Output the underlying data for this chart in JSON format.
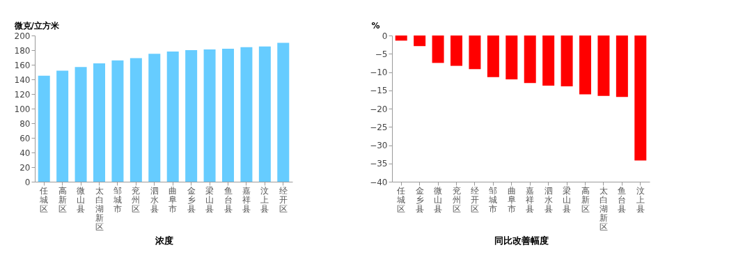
{
  "chart_data": [
    {
      "type": "bar",
      "ylabel": "微克/立方米",
      "xlabel": "浓度",
      "categories": [
        "任城区",
        "高新区",
        "微山县",
        "太白湖新区",
        "邹城市",
        "兖州区",
        "泗水县",
        "曲阜市",
        "金乡县",
        "梁山县",
        "鱼台县",
        "嘉祥县",
        "汶上县",
        "经开区"
      ],
      "series": [
        {
          "color": "#66ccff",
          "values": [
            145,
            152,
            157,
            162,
            166,
            169,
            175,
            178,
            180,
            181,
            182,
            184,
            185,
            190
          ]
        }
      ],
      "ylim": [
        0,
        200
      ],
      "yticks": [
        0,
        20,
        40,
        60,
        80,
        100,
        120,
        140,
        160,
        180,
        200
      ],
      "grid": false,
      "legend": false
    },
    {
      "type": "bar",
      "ylabel": "%",
      "xlabel": "同比改善幅度",
      "categories": [
        "任城区",
        "金乡县",
        "微山县",
        "兖州区",
        "经开区",
        "邹城市",
        "曲阜市",
        "嘉祥县",
        "泗水县",
        "梁山县",
        "高新区",
        "太白湖新区",
        "鱼台县",
        "汶上县"
      ],
      "series": [
        {
          "color": "#ff0000",
          "values": [
            -1.4,
            -2.9,
            -7.5,
            -8.3,
            -9.2,
            -11.4,
            -12,
            -13,
            -13.7,
            -13.9,
            -16.1,
            -16.5,
            -16.8,
            -34.2
          ]
        }
      ],
      "ylim": [
        -40,
        0
      ],
      "yticks": [
        -40,
        -35,
        -30,
        -25,
        -20,
        -15,
        -10,
        -5,
        0
      ],
      "grid": false,
      "legend": false
    }
  ]
}
